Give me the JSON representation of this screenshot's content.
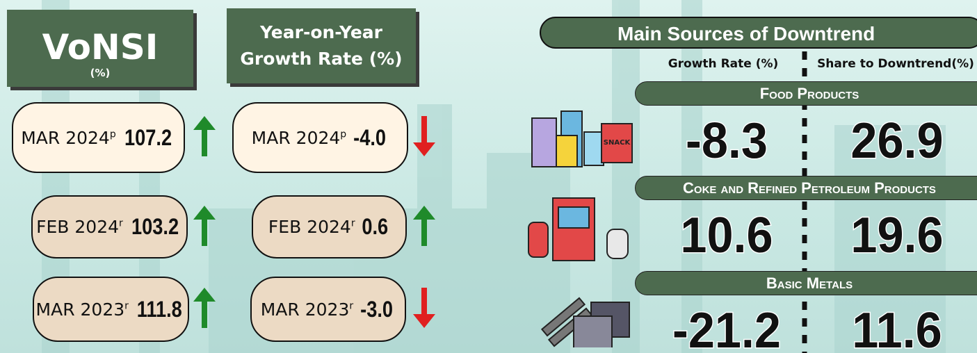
{
  "header": {
    "vonsi_title": "VoNSI",
    "vonsi_unit": "(%)",
    "yoy_title_line1": "Year-on-Year",
    "yoy_title_line2": "Growth Rate (%)"
  },
  "vonsi_rows": [
    {
      "period": "MAR 2024",
      "mark": "p",
      "value": "107.2"
    },
    {
      "period": "FEB 2024",
      "mark": "r",
      "value": "103.2"
    },
    {
      "period": "MAR 2023",
      "mark": "r",
      "value": "111.8"
    }
  ],
  "yoy_rows": [
    {
      "period": "MAR 2024",
      "mark": "p",
      "value": "-4.0"
    },
    {
      "period": "FEB 2024",
      "mark": "r",
      "value": "0.6"
    },
    {
      "period": "MAR 2023",
      "mark": "r",
      "value": "-3.0"
    }
  ],
  "downtrend": {
    "title": "Main Sources of Downtrend",
    "col_growth": "Growth Rate (%)",
    "col_share": "Share to  Downtrend(%)",
    "sectors": [
      {
        "name": "Food Products",
        "growth": "-8.3",
        "share": "26.9",
        "icon_label": "SNACK"
      },
      {
        "name": "Coke and Refined Petroleum Products",
        "growth": "10.6",
        "share": "19.6"
      },
      {
        "name": "Basic Metals",
        "growth": "-21.2",
        "share": "11.6"
      }
    ]
  }
}
